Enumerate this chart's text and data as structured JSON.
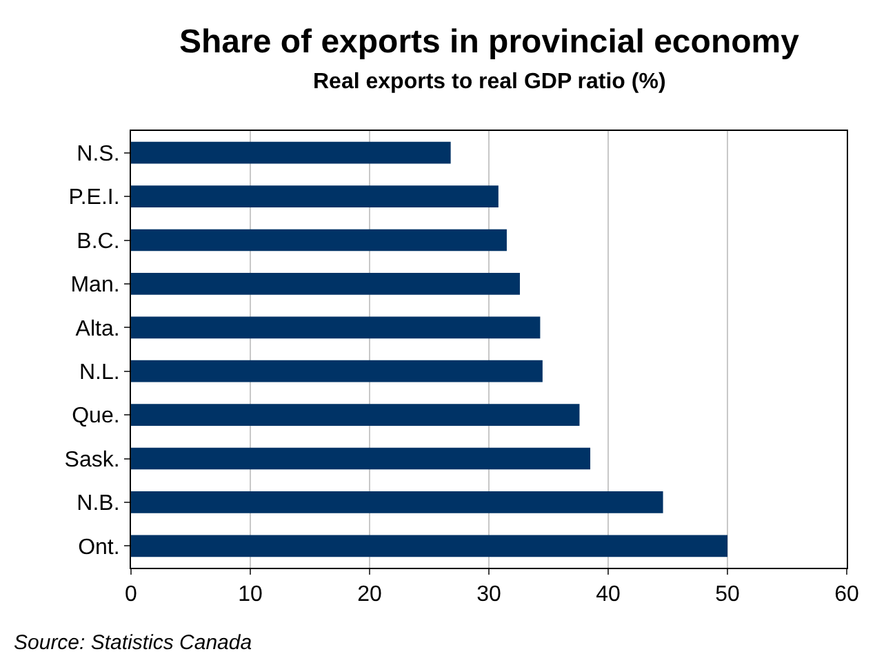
{
  "chart_data": {
    "type": "bar",
    "orientation": "horizontal",
    "title": "Share of exports in provincial economy",
    "subtitle": "Real exports to real GDP ratio (%)",
    "categories": [
      "N.S.",
      "P.E.I.",
      "B.C.",
      "Man.",
      "Alta.",
      "N.L.",
      "Que.",
      "Sask.",
      "N.B.",
      "Ont."
    ],
    "values": [
      26.8,
      30.8,
      31.5,
      32.6,
      34.3,
      34.5,
      37.6,
      38.5,
      44.6,
      50.0
    ],
    "color": "#003366",
    "xlim": [
      0,
      60
    ],
    "xticks": [
      0,
      10,
      20,
      30,
      40,
      50,
      60
    ],
    "grid": "x",
    "annotations": [
      "Source: Statistics Canada"
    ]
  }
}
